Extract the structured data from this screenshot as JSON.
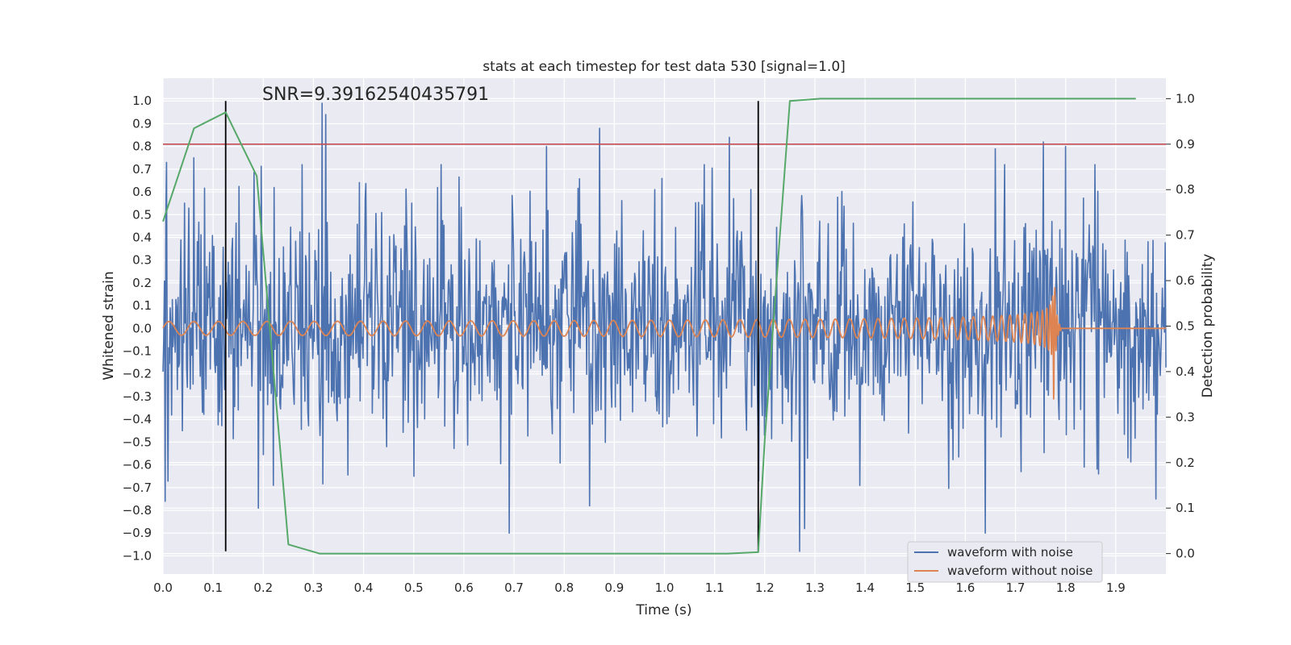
{
  "chart_data": {
    "type": "line",
    "title": "stats at each timestep for test data 530 [signal=1.0]",
    "xlabel": "Time (s)",
    "ylabel_left": "Whitened strain",
    "ylabel_right": "Detection probability",
    "xlim": [
      0.0,
      2.0
    ],
    "ylim_left": [
      -1.08,
      1.1
    ],
    "ylim_right": [
      -0.045,
      1.045
    ],
    "x_ticks": [
      "0.0",
      "0.1",
      "0.2",
      "0.3",
      "0.4",
      "0.5",
      "0.6",
      "0.7",
      "0.8",
      "0.9",
      "1.0",
      "1.1",
      "1.2",
      "1.3",
      "1.4",
      "1.5",
      "1.6",
      "1.7",
      "1.8",
      "1.9"
    ],
    "y_left_ticks": [
      "1.0",
      "0.9",
      "0.8",
      "0.7",
      "0.6",
      "0.5",
      "0.4",
      "0.3",
      "0.2",
      "0.1",
      "0.0",
      "−0.1",
      "−0.2",
      "−0.3",
      "−0.4",
      "−0.5",
      "−0.6",
      "−0.7",
      "−0.8",
      "−0.9",
      "−1.0"
    ],
    "y_right_ticks": [
      "1.0",
      "0.9",
      "0.8",
      "0.7",
      "0.6",
      "0.5",
      "0.4",
      "0.3",
      "0.2",
      "0.1",
      "0.0"
    ],
    "annotation": "SNR=9.39162540435791",
    "legend": [
      "waveform with noise",
      "waveform without noise"
    ],
    "colors": {
      "noise": "#4c72b0",
      "clean": "#dd8452",
      "prob": "#55a868",
      "threshold": "#c44e52",
      "markers": "#000000",
      "plot_bg": "#eaeaf2",
      "grid": "#ffffff"
    },
    "threshold_right": 0.9,
    "vertical_lines_x": [
      0.125,
      1.187
    ],
    "vertical_lines_left_range": [
      -0.98,
      1.0
    ],
    "noise_series": {
      "description": "high-frequency whitened strain with noise",
      "n_points": 1400,
      "amplitude_std": 0.25,
      "seed": 530,
      "spikes": [
        [
          0.005,
          -0.76
        ],
        [
          0.007,
          0.73
        ],
        [
          0.062,
          0.75
        ],
        [
          0.318,
          0.99
        ],
        [
          0.325,
          0.94
        ],
        [
          0.19,
          -0.79
        ],
        [
          0.22,
          -0.69
        ],
        [
          0.69,
          -0.9
        ],
        [
          0.765,
          0.8
        ],
        [
          0.85,
          -0.78
        ],
        [
          0.87,
          0.88
        ],
        [
          1.13,
          0.84
        ],
        [
          1.27,
          -0.98
        ],
        [
          1.28,
          -0.88
        ],
        [
          1.64,
          -0.9
        ],
        [
          1.66,
          0.79
        ],
        [
          1.755,
          0.82
        ],
        [
          1.8,
          0.8
        ],
        [
          1.98,
          -0.75
        ]
      ]
    },
    "clean_series": {
      "description": "chirp waveform without noise",
      "start_amplitude": 0.03,
      "peak_amplitude": 0.43,
      "start_freq_hz": 20,
      "merger_time": 1.775,
      "ringdown_end": 1.79
    },
    "probability_series": {
      "x": [
        0.0,
        0.062,
        0.125,
        0.187,
        0.25,
        0.312,
        0.375,
        0.5,
        0.75,
        1.0,
        1.125,
        1.187,
        1.2,
        1.25,
        1.312,
        1.5,
        1.75,
        1.94
      ],
      "y": [
        0.73,
        0.935,
        0.97,
        0.83,
        0.02,
        0.0,
        0.0,
        0.0,
        0.0,
        0.0,
        0.0,
        0.003,
        0.25,
        0.995,
        1.0,
        1.0,
        1.0,
        1.0
      ]
    }
  }
}
